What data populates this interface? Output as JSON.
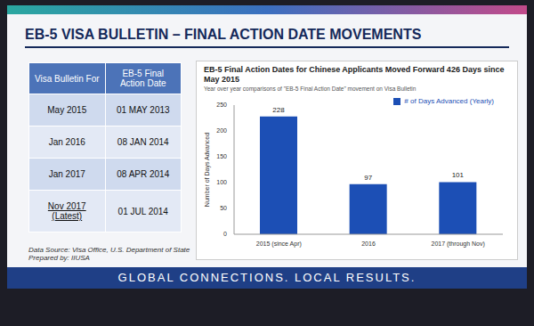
{
  "slide": {
    "title": "EB-5 VISA BULLETIN – FINAL ACTION DATE MOVEMENTS",
    "table": {
      "columns": [
        "Visa Bulletin For",
        "EB-5 Final Action Date"
      ],
      "rows": [
        [
          "May 2015",
          "01 MAY 2013"
        ],
        [
          "Jan 2016",
          "08 JAN 2014"
        ],
        [
          "Jan 2017",
          "08 APR 2014"
        ],
        [
          "Nov 2017 (Latest)",
          "01 JUL 2014"
        ]
      ]
    },
    "source": "Data Source: Visa Office, U.S. Department of State",
    "prepared_by": "Prepared by: IIUSA",
    "tagline": "GLOBAL CONNECTIONS. LOCAL RESULTS."
  },
  "chart_data": {
    "type": "bar",
    "title": "EB-5 Final Action Dates for Chinese Applicants Moved Forward 426 Days since May 2015",
    "subtitle": "Year over year comparisons of \"EB-5 Final Action Date\" movement on Visa Bulletin",
    "y_label": "Number of Days Advanced",
    "categories": [
      "2015 (since Apr)",
      "2016",
      "2017 (through Nov)"
    ],
    "series": [
      {
        "name": "# of Days Advanced (Yearly)",
        "color": "#1c4fb5",
        "values": [
          228,
          97,
          101
        ]
      }
    ],
    "ylim": [
      0,
      250
    ],
    "yticks": [
      0,
      50,
      100,
      150,
      200,
      250
    ],
    "grid": false,
    "legend": "upper right",
    "data_labels": true
  }
}
